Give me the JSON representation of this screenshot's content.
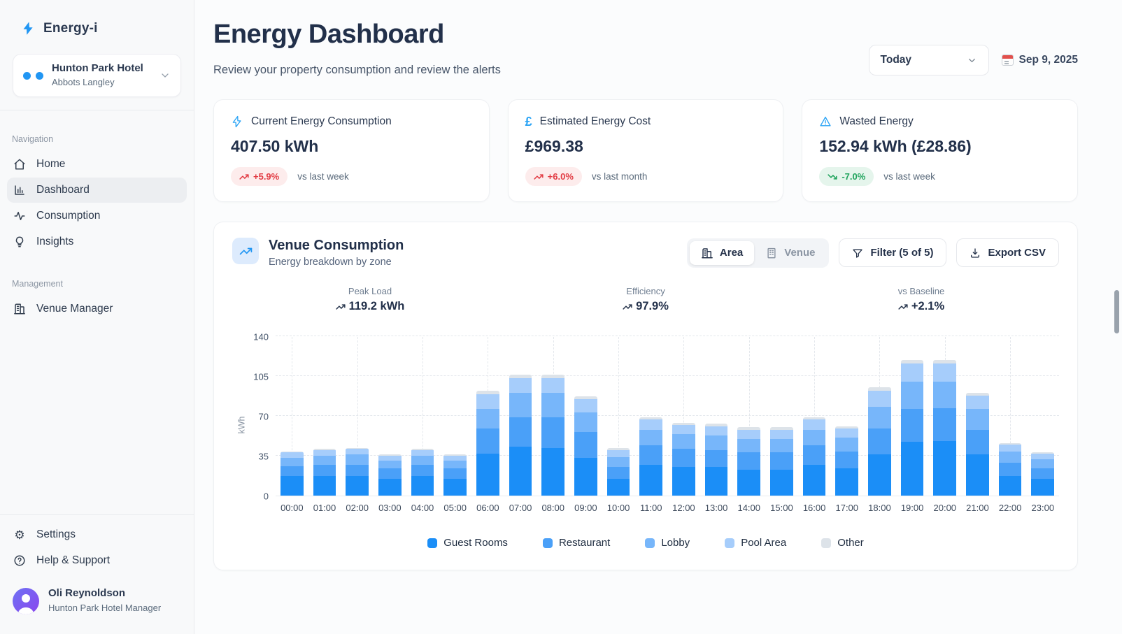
{
  "app": {
    "name": "Energy-i"
  },
  "sidebar": {
    "hotel": {
      "name": "Hunton Park Hotel",
      "location": "Abbots Langley"
    },
    "sections": [
      {
        "label": "Navigation",
        "items": [
          {
            "label": "Home",
            "icon": "home-icon",
            "active": false
          },
          {
            "label": "Dashboard",
            "icon": "dashboard-icon",
            "active": true
          },
          {
            "label": "Consumption",
            "icon": "consumption-icon",
            "active": false
          },
          {
            "label": "Insights",
            "icon": "insights-icon",
            "active": false
          }
        ]
      },
      {
        "label": "Management",
        "items": [
          {
            "label": "Venue Manager",
            "icon": "venue-manager-icon",
            "active": false
          }
        ]
      }
    ],
    "footer_items": [
      {
        "label": "Settings",
        "icon": "gear-icon"
      },
      {
        "label": "Help & Support",
        "icon": "help-icon"
      }
    ],
    "profile": {
      "name": "Oli Reynoldson",
      "role": "Hunton Park Hotel Manager"
    }
  },
  "header": {
    "title": "Energy Dashboard",
    "subtitle": "Review your property consumption and review the alerts",
    "range_selector": "Today",
    "date": "Sep 9, 2025"
  },
  "stat_cards": [
    {
      "icon": "bolt-icon",
      "title": "Current Energy Consumption",
      "value": "407.50 kWh",
      "badge": {
        "text": "+5.9%",
        "direction": "up",
        "tone": "negative"
      },
      "compare": "vs last week"
    },
    {
      "icon": "pound-icon",
      "title": "Estimated Energy Cost",
      "value": "£969.38",
      "badge": {
        "text": "+6.0%",
        "direction": "up",
        "tone": "negative"
      },
      "compare": "vs last month"
    },
    {
      "icon": "warning-icon",
      "title": "Wasted Energy",
      "value": "152.94 kWh (£28.86)",
      "badge": {
        "text": "-7.0%",
        "direction": "down",
        "tone": "positive"
      },
      "compare": "vs last week"
    }
  ],
  "venue_panel": {
    "title": "Venue Consumption",
    "subtitle": "Energy breakdown by zone",
    "toggle": [
      {
        "label": "Area",
        "icon": "area-building-icon",
        "active": true
      },
      {
        "label": "Venue",
        "icon": "venue-building-icon",
        "active": false
      }
    ],
    "filter_label": "Filter (5 of 5)",
    "export_label": "Export CSV",
    "mini_stats": [
      {
        "label": "Peak Load",
        "value": "119.2 kWh"
      },
      {
        "label": "Efficiency",
        "value": "97.9%"
      },
      {
        "label": "vs Baseline",
        "value": "+2.1%"
      }
    ]
  },
  "chart_data": {
    "type": "bar",
    "stacked": true,
    "title": "Venue Consumption",
    "ylabel": "kWh",
    "ylim": [
      0,
      140
    ],
    "yticks": [
      0,
      35,
      70,
      105,
      140
    ],
    "grid": "dashed",
    "legend_position": "bottom",
    "categories": [
      "00:00",
      "01:00",
      "02:00",
      "03:00",
      "04:00",
      "05:00",
      "06:00",
      "07:00",
      "08:00",
      "09:00",
      "10:00",
      "11:00",
      "12:00",
      "13:00",
      "14:00",
      "15:00",
      "16:00",
      "17:00",
      "18:00",
      "19:00",
      "20:00",
      "21:00",
      "22:00",
      "23:00"
    ],
    "series": [
      {
        "name": "Guest Rooms",
        "color": "#1b8ef7",
        "values": [
          17,
          17,
          17,
          15,
          17,
          15,
          37,
          43,
          42,
          33,
          15,
          27,
          25,
          25,
          23,
          23,
          27,
          24,
          36,
          47,
          48,
          36,
          17,
          15
        ]
      },
      {
        "name": "Restaurant",
        "color": "#4aa0f8",
        "values": [
          9,
          10,
          10,
          9,
          10,
          9,
          22,
          26,
          27,
          23,
          10,
          17,
          16,
          15,
          15,
          15,
          17,
          15,
          23,
          29,
          29,
          22,
          12,
          9
        ]
      },
      {
        "name": "Lobby",
        "color": "#77b6fa",
        "values": [
          7,
          8,
          9,
          7,
          8,
          7,
          17,
          21,
          21,
          17,
          9,
          14,
          13,
          13,
          12,
          12,
          14,
          12,
          19,
          24,
          23,
          18,
          10,
          8
        ]
      },
      {
        "name": "Pool Area",
        "color": "#a6cdfb",
        "values": [
          5,
          5,
          5,
          4,
          5,
          4,
          13,
          13,
          13,
          12,
          6,
          9,
          8,
          8,
          8,
          8,
          9,
          8,
          14,
          16,
          16,
          12,
          6,
          5
        ]
      },
      {
        "name": "Other",
        "color": "#dde3e9",
        "values": [
          1,
          1,
          1,
          1,
          1,
          1,
          3,
          3,
          3,
          2,
          2,
          2,
          2,
          2,
          2,
          2,
          2,
          2,
          3,
          3,
          3,
          2,
          1,
          1
        ]
      }
    ],
    "totals": [
      39,
      41,
      42,
      36,
      41,
      36,
      92,
      106,
      106,
      87,
      42,
      69,
      64,
      63,
      60,
      60,
      69,
      61,
      95,
      119,
      119,
      90,
      46,
      38
    ]
  },
  "colors": {
    "accent": "#2196f3",
    "negative_text": "#e23c44",
    "negative_bg": "#fdecec",
    "positive_text": "#1fa35c",
    "positive_bg": "#e5f5ec",
    "sidebar_bg": "#f8f9fa",
    "card_border": "#eef0f3"
  }
}
